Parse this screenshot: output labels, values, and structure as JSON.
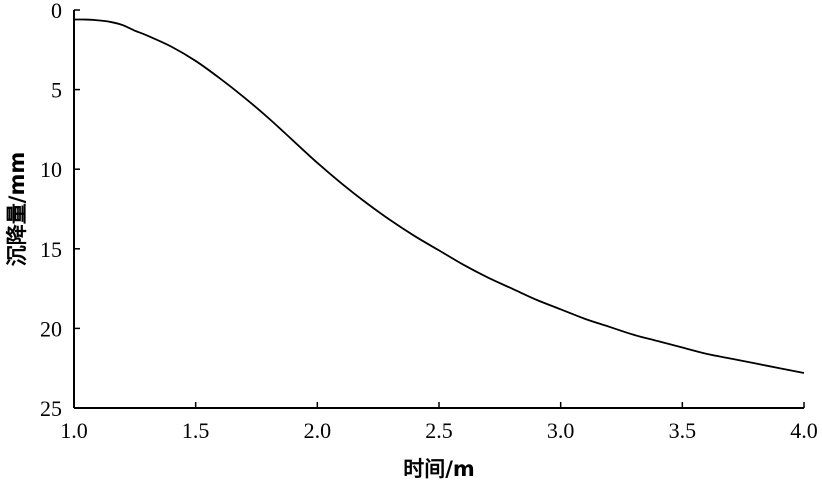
{
  "chart_data": {
    "type": "line",
    "title": "",
    "xlabel": "时间/m",
    "ylabel": "沉降量/mm",
    "xlim": [
      1.0,
      4.0
    ],
    "ylim": [
      0,
      25
    ],
    "y_inverted": true,
    "grid": false,
    "legend": "none",
    "x_ticks": [
      "1.0",
      "1.5",
      "2.0",
      "2.5",
      "3.0",
      "3.5",
      "4.0"
    ],
    "y_ticks": [
      "0",
      "5",
      "10",
      "15",
      "20",
      "25"
    ],
    "series": [
      {
        "color": "#000000",
        "x": [
          1.0,
          1.05,
          1.1,
          1.15,
          1.2,
          1.25,
          1.3,
          1.4,
          1.5,
          1.6,
          1.7,
          1.8,
          1.9,
          2.0,
          2.1,
          2.2,
          2.3,
          2.4,
          2.5,
          2.6,
          2.7,
          2.8,
          2.9,
          3.0,
          3.1,
          3.2,
          3.3,
          3.4,
          3.5,
          3.6,
          3.7,
          3.8,
          3.9,
          4.0
        ],
        "values": [
          0.6,
          0.6,
          0.65,
          0.75,
          0.95,
          1.3,
          1.6,
          2.3,
          3.2,
          4.3,
          5.5,
          6.8,
          8.2,
          9.6,
          10.9,
          12.1,
          13.2,
          14.2,
          15.1,
          16.0,
          16.8,
          17.5,
          18.2,
          18.8,
          19.4,
          19.9,
          20.4,
          20.8,
          21.2,
          21.6,
          21.9,
          22.2,
          22.5,
          22.8
        ]
      }
    ]
  }
}
